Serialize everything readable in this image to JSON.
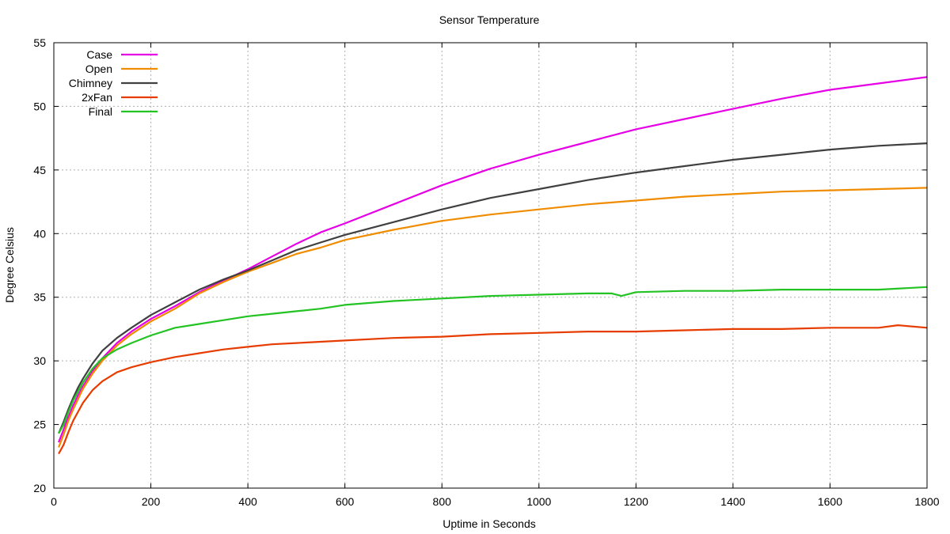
{
  "chart_data": {
    "type": "line",
    "title": "Sensor Temperature",
    "xlabel": "Uptime in Seconds",
    "ylabel": "Degree Celsius",
    "xlim": [
      0,
      1800
    ],
    "ylim": [
      20,
      55
    ],
    "xticks": [
      0,
      200,
      400,
      600,
      800,
      1000,
      1200,
      1400,
      1600,
      1800
    ],
    "yticks": [
      20,
      25,
      30,
      35,
      40,
      45,
      50,
      55
    ],
    "grid": true,
    "legend_position": "top-left",
    "series": [
      {
        "name": "Case",
        "color": "#e600e6",
        "x": [
          10,
          20,
          30,
          40,
          50,
          60,
          80,
          100,
          130,
          160,
          200,
          250,
          300,
          350,
          400,
          450,
          500,
          550,
          600,
          700,
          800,
          900,
          1000,
          1100,
          1200,
          1300,
          1400,
          1500,
          1600,
          1700,
          1800
        ],
        "y": [
          23.6,
          24.6,
          25.6,
          26.5,
          27.3,
          28.0,
          29.2,
          30.2,
          31.4,
          32.3,
          33.3,
          34.3,
          35.4,
          36.3,
          37.2,
          38.2,
          39.2,
          40.1,
          40.8,
          42.3,
          43.8,
          45.1,
          46.2,
          47.2,
          48.2,
          49.0,
          49.8,
          50.6,
          51.3,
          51.8,
          52.3
        ]
      },
      {
        "name": "Open",
        "color": "#f08c00",
        "x": [
          10,
          20,
          30,
          40,
          50,
          60,
          80,
          100,
          130,
          160,
          200,
          250,
          300,
          350,
          400,
          450,
          500,
          550,
          600,
          700,
          800,
          900,
          1000,
          1100,
          1200,
          1300,
          1400,
          1500,
          1600,
          1700,
          1800
        ],
        "y": [
          23.2,
          24.2,
          25.3,
          26.2,
          27.0,
          27.8,
          29.0,
          30.0,
          31.2,
          32.1,
          33.1,
          34.1,
          35.3,
          36.2,
          37.0,
          37.7,
          38.4,
          38.9,
          39.5,
          40.3,
          41.0,
          41.5,
          41.9,
          42.3,
          42.6,
          42.9,
          43.1,
          43.3,
          43.4,
          43.5,
          43.6
        ]
      },
      {
        "name": "Chimney",
        "color": "#404040",
        "x": [
          10,
          20,
          30,
          40,
          50,
          60,
          80,
          100,
          130,
          160,
          200,
          250,
          300,
          350,
          400,
          450,
          500,
          550,
          600,
          700,
          800,
          900,
          1000,
          1100,
          1200,
          1300,
          1400,
          1500,
          1600,
          1700,
          1800
        ],
        "y": [
          24.3,
          25.2,
          26.2,
          27.1,
          27.9,
          28.6,
          29.8,
          30.8,
          31.8,
          32.6,
          33.6,
          34.6,
          35.6,
          36.4,
          37.1,
          37.9,
          38.7,
          39.3,
          39.9,
          40.9,
          41.9,
          42.8,
          43.5,
          44.2,
          44.8,
          45.3,
          45.8,
          46.2,
          46.6,
          46.9,
          47.1
        ]
      },
      {
        "name": "2xFan",
        "color": "#e63c00",
        "x": [
          10,
          20,
          30,
          40,
          50,
          60,
          80,
          100,
          130,
          160,
          200,
          250,
          300,
          350,
          400,
          450,
          500,
          550,
          600,
          700,
          800,
          900,
          1000,
          1100,
          1200,
          1300,
          1400,
          1500,
          1600,
          1700,
          1740,
          1800
        ],
        "y": [
          22.7,
          23.4,
          24.4,
          25.3,
          26.0,
          26.7,
          27.7,
          28.4,
          29.1,
          29.5,
          29.9,
          30.3,
          30.6,
          30.9,
          31.1,
          31.3,
          31.4,
          31.5,
          31.6,
          31.8,
          31.9,
          32.1,
          32.2,
          32.3,
          32.3,
          32.4,
          32.5,
          32.5,
          32.6,
          32.6,
          32.8,
          32.6
        ]
      },
      {
        "name": "Final",
        "color": "#22c322",
        "x": [
          10,
          20,
          30,
          40,
          50,
          60,
          80,
          100,
          130,
          160,
          200,
          250,
          300,
          350,
          400,
          450,
          500,
          550,
          600,
          700,
          800,
          900,
          1000,
          1100,
          1150,
          1170,
          1200,
          1300,
          1400,
          1500,
          1600,
          1700,
          1800
        ],
        "y": [
          24.3,
          25.0,
          26.0,
          26.9,
          27.6,
          28.3,
          29.4,
          30.2,
          30.9,
          31.4,
          32.0,
          32.6,
          32.9,
          33.2,
          33.5,
          33.7,
          33.9,
          34.1,
          34.4,
          34.7,
          34.9,
          35.1,
          35.2,
          35.3,
          35.3,
          35.1,
          35.4,
          35.5,
          35.5,
          35.6,
          35.6,
          35.6,
          35.8
        ]
      }
    ]
  }
}
